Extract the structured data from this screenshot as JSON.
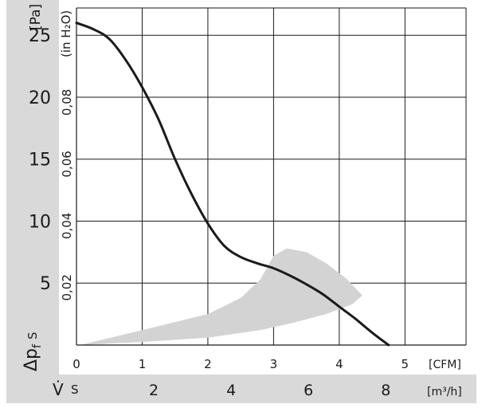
{
  "chart_data": {
    "type": "line",
    "title": "",
    "y_axis_pa": {
      "unit_label": "[Pa]",
      "ticks": [
        5,
        10,
        15,
        20,
        25
      ],
      "range": [
        0,
        27.2
      ]
    },
    "y_axis_inh2o": {
      "unit_label": "(in H₂O)",
      "ticks": [
        "0,02",
        "0,04",
        "0,06",
        "0,08"
      ],
      "tick_values": [
        0.02,
        0.04,
        0.06,
        0.08
      ]
    },
    "x_axis_cfm": {
      "unit_label": "[CFM]",
      "ticks": [
        "0",
        "1",
        "2",
        "3",
        "4",
        "5"
      ],
      "tick_values": [
        0,
        1,
        2,
        3,
        4,
        5
      ],
      "range": [
        0,
        5.93
      ]
    },
    "x_axis_m3h": {
      "unit_label": "[m³/h]",
      "ticks": [
        "2",
        "4",
        "6",
        "8"
      ],
      "tick_values": [
        2,
        4,
        6,
        8
      ]
    },
    "y_axis_symbol": "Δp",
    "y_axis_symbol_sub": "f",
    "y_axis_symbol_s": "S",
    "x_axis_symbol": "V̇",
    "x_axis_symbol_s": "S",
    "series": [
      {
        "x": [
          0,
          0.25,
          0.5,
          0.75,
          1.0,
          1.25,
          1.5,
          1.75,
          2.0,
          2.25,
          2.5,
          2.75,
          3.0,
          3.25,
          3.5,
          3.75,
          4.0,
          4.25,
          4.5,
          4.75
        ],
        "y": [
          26.0,
          25.5,
          24.7,
          23.0,
          20.8,
          18.2,
          15.0,
          12.2,
          9.8,
          8.0,
          7.1,
          6.6,
          6.2,
          5.6,
          4.9,
          4.1,
          3.1,
          2.1,
          1.0,
          0.0
        ]
      }
    ],
    "shaded_region": {
      "upper": [
        [
          0.05,
          0.0
        ],
        [
          1.0,
          1.2
        ],
        [
          2.0,
          2.5
        ],
        [
          2.5,
          3.8
        ],
        [
          2.8,
          5.3
        ],
        [
          3.0,
          7.2
        ],
        [
          3.2,
          7.8
        ],
        [
          3.5,
          7.5
        ],
        [
          3.8,
          6.6
        ],
        [
          4.1,
          5.4
        ],
        [
          4.35,
          4.0
        ]
      ],
      "lower": [
        [
          4.35,
          4.0
        ],
        [
          4.2,
          3.3
        ],
        [
          3.8,
          2.5
        ],
        [
          3.3,
          1.8
        ],
        [
          2.8,
          1.2
        ],
        [
          2.0,
          0.6
        ],
        [
          1.0,
          0.25
        ],
        [
          0.05,
          0.0
        ]
      ]
    },
    "grid": true
  }
}
